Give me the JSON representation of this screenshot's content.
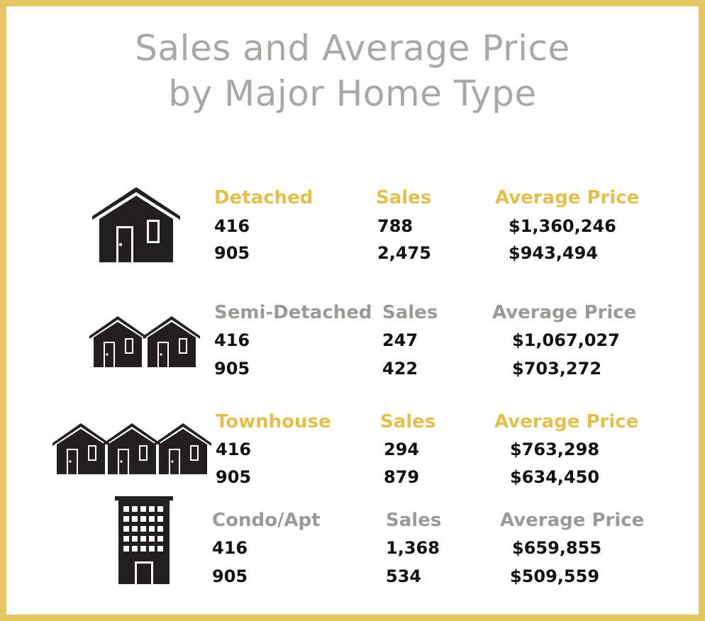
{
  "title": {
    "line1": "Sales and Average Price",
    "line2": "by Major Home Type"
  },
  "colors": {
    "border": "#e2c664",
    "gold": "#e2c050",
    "grey": "#9a9b97",
    "title": "#a8a9a4",
    "icon": "#231f20"
  },
  "sections": [
    {
      "icon": "house-icon",
      "type_label": "Detached",
      "sales_label": "Sales",
      "price_label": "Average Price",
      "rows": [
        {
          "area": "416",
          "sales": "788",
          "price": "$1,360,246"
        },
        {
          "area": "905",
          "sales": "2,475",
          "price": "$943,494"
        }
      ]
    },
    {
      "icon": "semi-detached-houses-icon",
      "type_label": "Semi-Detached",
      "sales_label": "Sales",
      "price_label": "Average Price",
      "rows": [
        {
          "area": "416",
          "sales": "247",
          "price": "$1,067,027"
        },
        {
          "area": "905",
          "sales": "422",
          "price": "$703,272"
        }
      ]
    },
    {
      "icon": "townhouses-icon",
      "type_label": "Townhouse",
      "sales_label": "Sales",
      "price_label": "Average Price",
      "rows": [
        {
          "area": "416",
          "sales": "294",
          "price": "$763,298"
        },
        {
          "area": "905",
          "sales": "879",
          "price": "$634,450"
        }
      ]
    },
    {
      "icon": "condo-building-icon",
      "type_label": "Condo/Apt",
      "sales_label": "Sales",
      "price_label": "Average Price",
      "rows": [
        {
          "area": "416",
          "sales": "1,368",
          "price": "$659,855"
        },
        {
          "area": "905",
          "sales": "534",
          "price": "$509,559"
        }
      ]
    }
  ]
}
